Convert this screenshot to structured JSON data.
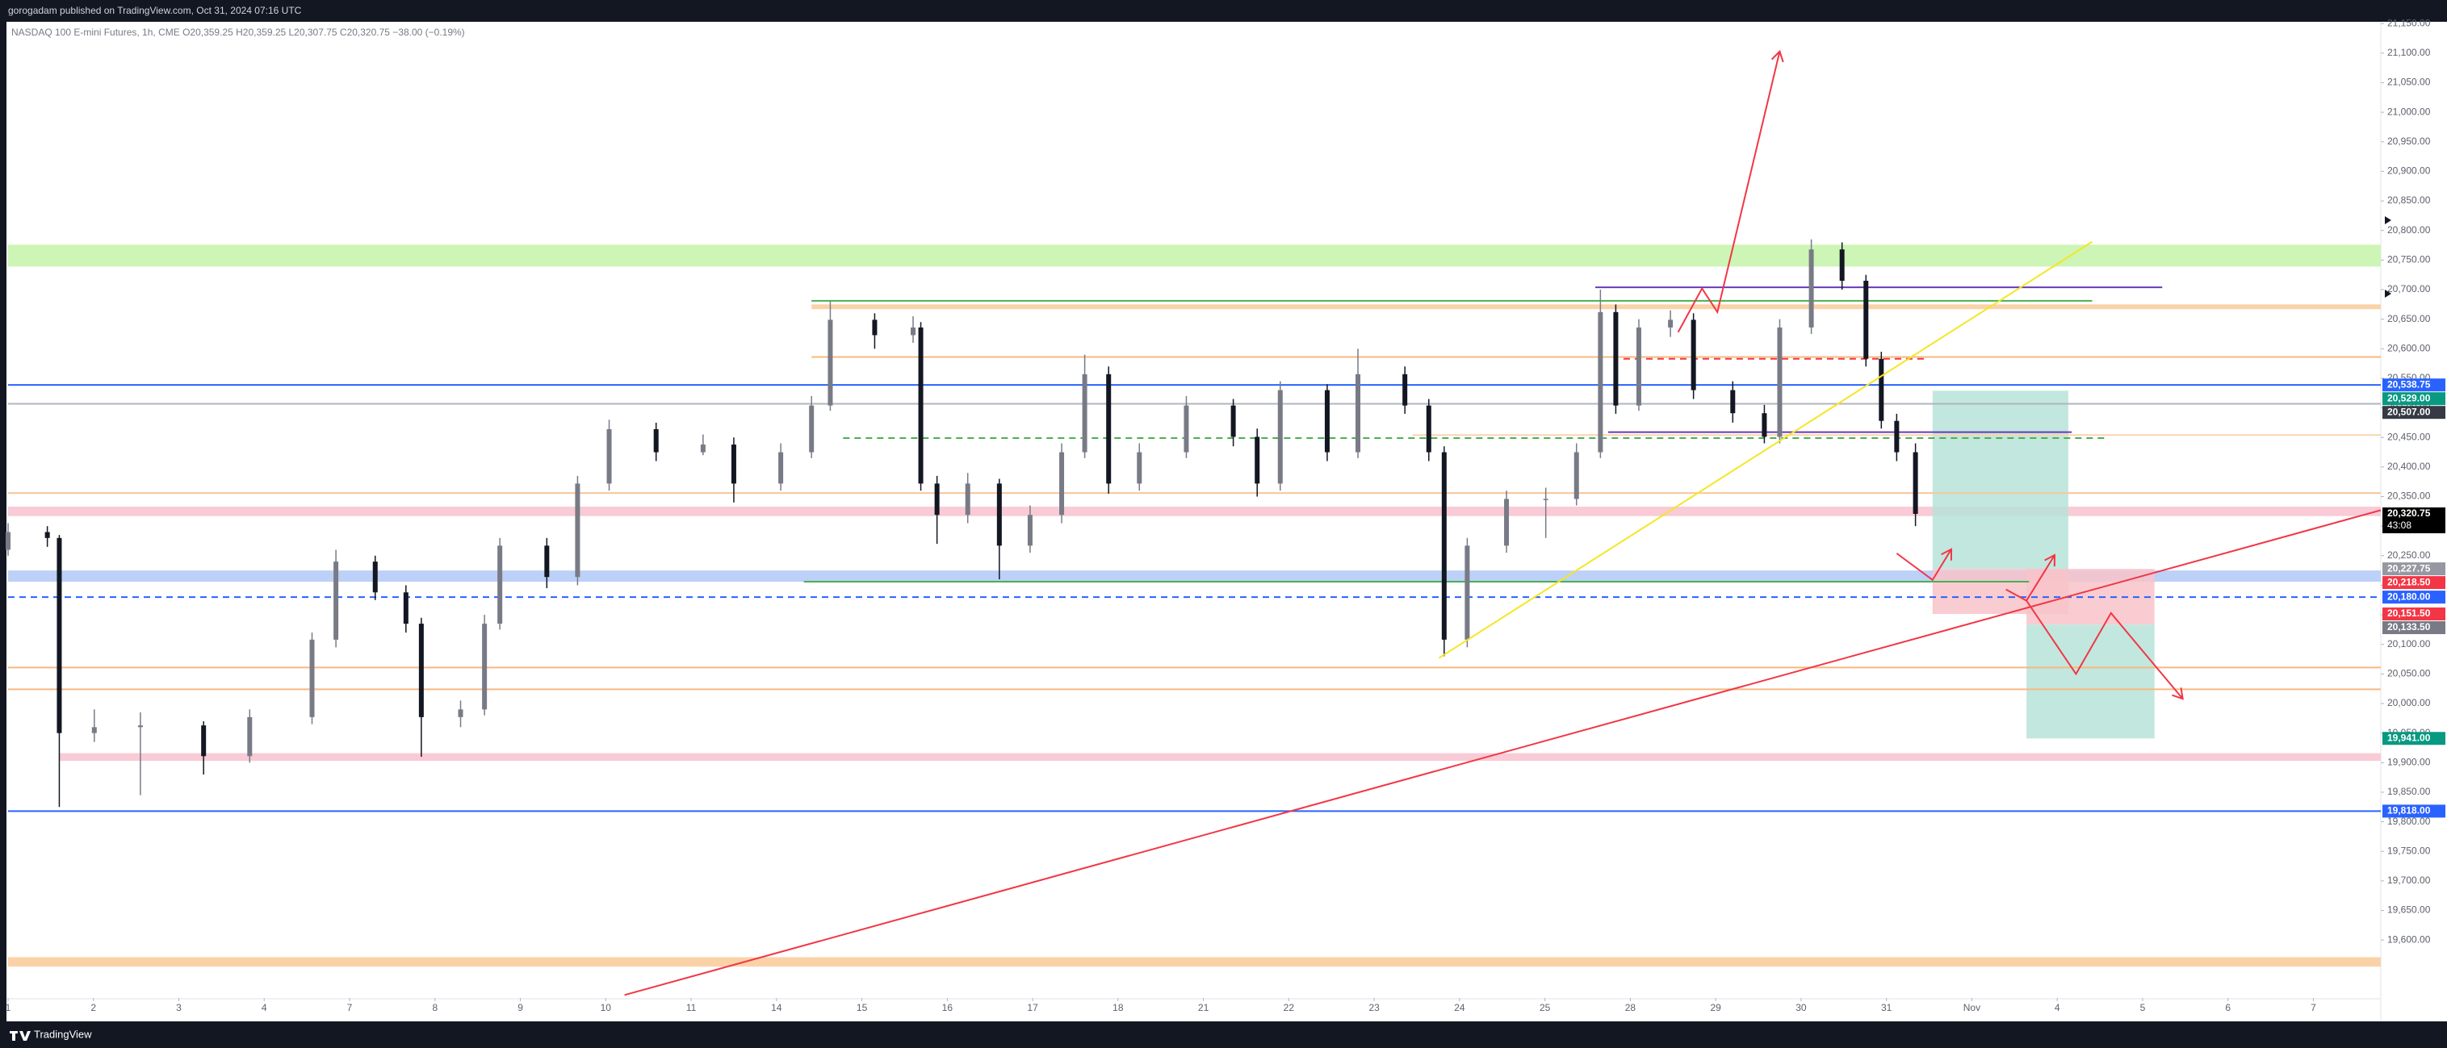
{
  "chart_data": {
    "type": "candlestick",
    "title": "gorogadam published on TradingView.com, Oct 31, 2024 07:16 UTC",
    "subtitle": "NASDAQ 100 E-mini Futures, 1h, CME  O20,359.25 H20,359.25 L20,307.75 C20,320.75 −38.00 (−0.19%)",
    "footer": "TradingView",
    "countdown": "43:08",
    "xlim": [
      0,
      27.79
    ],
    "ylim": [
      19502,
      21153
    ],
    "xticks": [
      {
        "value": 0,
        "label": "1"
      },
      {
        "value": 1,
        "label": "2"
      },
      {
        "value": 2,
        "label": "3"
      },
      {
        "value": 3,
        "label": "4"
      },
      {
        "value": 4,
        "label": "7"
      },
      {
        "value": 5,
        "label": "8"
      },
      {
        "value": 6,
        "label": "9"
      },
      {
        "value": 7,
        "label": "10"
      },
      {
        "value": 8,
        "label": "11"
      },
      {
        "value": 9,
        "label": "14"
      },
      {
        "value": 10,
        "label": "15"
      },
      {
        "value": 11,
        "label": "16"
      },
      {
        "value": 12,
        "label": "17"
      },
      {
        "value": 13,
        "label": "18"
      },
      {
        "value": 14,
        "label": "21"
      },
      {
        "value": 15,
        "label": "22"
      },
      {
        "value": 16,
        "label": "23"
      },
      {
        "value": 17,
        "label": "24"
      },
      {
        "value": 18,
        "label": "25"
      },
      {
        "value": 19,
        "label": "28"
      },
      {
        "value": 20,
        "label": "29"
      },
      {
        "value": 21,
        "label": "30"
      },
      {
        "value": 22,
        "label": "31"
      },
      {
        "value": 23,
        "label": "Nov"
      },
      {
        "value": 24,
        "label": "4"
      },
      {
        "value": 25,
        "label": "5"
      },
      {
        "value": 26,
        "label": "6"
      },
      {
        "value": 27,
        "label": "7"
      }
    ],
    "yticks": [
      {
        "value": 19600,
        "label": "19,600.00"
      },
      {
        "value": 19650,
        "label": "19,650.00"
      },
      {
        "value": 19700,
        "label": "19,700.00"
      },
      {
        "value": 19750,
        "label": "19,750.00"
      },
      {
        "value": 19800,
        "label": "19,800.00"
      },
      {
        "value": 19850,
        "label": "19,850.00"
      },
      {
        "value": 19900,
        "label": "19,900.00"
      },
      {
        "value": 19950,
        "label": "19,950.00"
      },
      {
        "value": 20000,
        "label": "20,000.00"
      },
      {
        "value": 20050,
        "label": "20,050.00"
      },
      {
        "value": 20100,
        "label": "20,100.00"
      },
      {
        "value": 20150,
        "label": "20,150.00"
      },
      {
        "value": 20200,
        "label": "20,200.00"
      },
      {
        "value": 20250,
        "label": "20,250.00"
      },
      {
        "value": 20300,
        "label": "20,300.00"
      },
      {
        "value": 20350,
        "label": "20,350.00"
      },
      {
        "value": 20400,
        "label": "20,400.00"
      },
      {
        "value": 20450,
        "label": "20,450.00"
      },
      {
        "value": 20500,
        "label": "20,500.00"
      },
      {
        "value": 20550,
        "label": "20,550.00"
      },
      {
        "value": 20600,
        "label": "20,600.00"
      },
      {
        "value": 20650,
        "label": "20,650.00"
      },
      {
        "value": 20700,
        "label": "20,700.00"
      },
      {
        "value": 20750,
        "label": "20,750.00"
      },
      {
        "value": 20800,
        "label": "20,800.00"
      },
      {
        "value": 20850,
        "label": "20,850.00"
      },
      {
        "value": 20900,
        "label": "20,900.00"
      },
      {
        "value": 20950,
        "label": "20,950.00"
      },
      {
        "value": 21000,
        "label": "21,000.00"
      },
      {
        "value": 21050,
        "label": "21,050.00"
      },
      {
        "value": 21100,
        "label": "21,100.00"
      },
      {
        "value": 21150,
        "label": "21,150.00"
      }
    ],
    "up_color": "#787b86",
    "down_color": "#131722",
    "candles": {
      "x": [
        0,
        0.46,
        0.6,
        1.01,
        1.55,
        2.29,
        2.83,
        3.56,
        3.84,
        4.3,
        4.66,
        4.84,
        5.3,
        5.58,
        5.76,
        6.31,
        6.67,
        7.04,
        7.59,
        8.14,
        8.5,
        9.05,
        9.41,
        9.63,
        10.15,
        10.6,
        10.69,
        10.88,
        11.24,
        11.61,
        11.97,
        12.34,
        12.61,
        12.89,
        13.25,
        13.8,
        14.35,
        14.63,
        14.9,
        15.45,
        15.81,
        16.36,
        16.64,
        16.82,
        17.09,
        17.55,
        18.01,
        18.37,
        18.65,
        18.83,
        19.1,
        19.47,
        19.74,
        20.2,
        20.57,
        20.75,
        21.12,
        21.48,
        21.76,
        21.94,
        22.12,
        22.34
      ],
      "open": [
        20260,
        20290,
        20280,
        19950,
        19960,
        19963,
        19911,
        19977,
        20108,
        20240,
        20188,
        20135,
        19977,
        19990,
        20135,
        20267,
        20214,
        20372,
        20464,
        20425,
        20438,
        20372,
        20425,
        20504,
        20649,
        20623,
        20636,
        20372,
        20319,
        20372,
        20267,
        20319,
        20425,
        20557,
        20372,
        20425,
        20504,
        20451,
        20372,
        20530,
        20425,
        20557,
        20504,
        20425,
        20108,
        20267,
        20346,
        20346,
        20425,
        20662,
        20504,
        20636,
        20649,
        20530,
        20491,
        20451,
        20636,
        20768,
        20715,
        20583,
        20478,
        20425
      ],
      "high": [
        20305,
        20300,
        20285,
        19990,
        19985,
        19970,
        19990,
        20120,
        20260,
        20250,
        20200,
        20145,
        20005,
        20150,
        20280,
        20280,
        20385,
        20480,
        20475,
        20455,
        20450,
        20440,
        20520,
        20680,
        20660,
        20655,
        20645,
        20385,
        20390,
        20380,
        20335,
        20440,
        20590,
        20570,
        20440,
        20520,
        20515,
        20465,
        20545,
        20540,
        20600,
        20570,
        20515,
        20435,
        20280,
        20360,
        20365,
        20440,
        20700,
        20675,
        20650,
        20665,
        20660,
        20545,
        20505,
        20650,
        20785,
        20780,
        20725,
        20595,
        20490,
        20440
      ],
      "low": [
        20250,
        20265,
        19825,
        19935,
        19845,
        19880,
        19900,
        19965,
        20095,
        20175,
        20120,
        19910,
        19960,
        19980,
        20125,
        20195,
        20200,
        20360,
        20410,
        20420,
        20340,
        20360,
        20415,
        20495,
        20600,
        20610,
        20360,
        20270,
        20305,
        20210,
        20255,
        20305,
        20415,
        20355,
        20360,
        20415,
        20435,
        20350,
        20360,
        20410,
        20415,
        20490,
        20410,
        20080,
        20095,
        20255,
        20280,
        20335,
        20415,
        20490,
        20495,
        20620,
        20515,
        20475,
        20440,
        20440,
        20625,
        20700,
        20570,
        20465,
        20410,
        20300
      ],
      "close": [
        20290,
        20280,
        19950,
        19960,
        19963,
        19911,
        19977,
        20108,
        20240,
        20188,
        20135,
        19977,
        19990,
        20135,
        20267,
        20214,
        20372,
        20464,
        20425,
        20438,
        20372,
        20425,
        20504,
        20649,
        20623,
        20636,
        20372,
        20319,
        20372,
        20267,
        20319,
        20425,
        20557,
        20372,
        20425,
        20504,
        20451,
        20372,
        20530,
        20425,
        20557,
        20504,
        20425,
        20108,
        20267,
        20346,
        20346,
        20425,
        20662,
        20504,
        20636,
        20649,
        20530,
        20491,
        20451,
        20636,
        20768,
        20715,
        20583,
        20478,
        20425,
        20320.75
      ]
    },
    "zones": [
      {
        "from": 20739,
        "to": 20776,
        "color": "#cdf5b5"
      },
      {
        "from": 20667,
        "to": 20675,
        "color": "#fbd2a8",
        "x1": 9.41
      },
      {
        "from": 20317,
        "to": 20333,
        "color": "#f9cbd6"
      },
      {
        "from": 20206,
        "to": 20225,
        "color": "#bcd0f8"
      },
      {
        "from": 19903,
        "to": 19916,
        "color": "#f9cbd6",
        "x1": 0.6
      },
      {
        "from": 19555,
        "to": 19571,
        "color": "#fbd2a8"
      }
    ],
    "levels": [
      {
        "value": 20681,
        "color": "#4caf50",
        "x1": 9.41,
        "x2": 24.41
      },
      {
        "value": 20586,
        "color": "#f7b980",
        "x1": 9.41
      },
      {
        "value": 20538.75,
        "color": "#2962ff"
      },
      {
        "value": 20507,
        "color": "#b2b5be"
      },
      {
        "value": 20454,
        "color": "#f9d3b0",
        "x1": 16.45
      },
      {
        "value": 20449,
        "color": "#4caf50",
        "x1": 9.78,
        "x2": 24.59,
        "dash": true
      },
      {
        "value": 20356,
        "color": "#f7c79a"
      },
      {
        "value": 20206,
        "color": "#4caf50",
        "x1": 9.32,
        "x2": 23.67
      },
      {
        "value": 20180,
        "color": "#2962ff",
        "dash": true
      },
      {
        "value": 20061,
        "color": "#f7b980"
      },
      {
        "value": 20024,
        "color": "#f7b980"
      },
      {
        "value": 19818,
        "color": "#2962ff"
      },
      {
        "value": 20704,
        "color": "#673ab7",
        "x1": 18.59,
        "x2": 25.23
      },
      {
        "value": 20459,
        "color": "#673ab7",
        "x1": 18.74,
        "x2": 24.17
      },
      {
        "value": 20583,
        "color": "#f23645",
        "x1": 18.92,
        "x2": 22.49,
        "dash": true
      }
    ],
    "trendlines": [
      {
        "color": "#f23645",
        "points": [
          [
            7.22,
            19507
          ],
          [
            27.79,
            20327
          ]
        ]
      },
      {
        "color": "#f23645",
        "arrow": true,
        "points": [
          [
            19.56,
            20628
          ],
          [
            19.84,
            20702
          ],
          [
            20.02,
            20662
          ],
          [
            20.75,
            21103
          ]
        ]
      },
      {
        "color": "#f5e626",
        "points": [
          [
            16.76,
            20077
          ],
          [
            24.41,
            20781
          ]
        ]
      },
      {
        "color": "#f23645",
        "arrow": true,
        "points": [
          [
            22.12,
            20254
          ],
          [
            22.54,
            20209
          ],
          [
            22.76,
            20261
          ]
        ]
      },
      {
        "color": "#f23645",
        "arrow": true,
        "points": [
          [
            23.4,
            20193
          ],
          [
            23.64,
            20174
          ],
          [
            23.97,
            20251
          ]
        ]
      },
      {
        "color": "#f23645",
        "arrow": true,
        "points": [
          [
            23.64,
            20174
          ],
          [
            24.22,
            20050
          ],
          [
            24.63,
            20153
          ],
          [
            25.47,
            20008
          ]
        ]
      }
    ],
    "boxes": [
      {
        "x1": 22.54,
        "x2": 24.13,
        "from": 20227.75,
        "to": 20529,
        "color": "#b7e3d8"
      },
      {
        "x1": 22.54,
        "x2": 24.13,
        "from": 20151.5,
        "to": 20227.75,
        "color": "#f7c3c9"
      },
      {
        "x1": 23.64,
        "x2": 25.14,
        "from": 20133.5,
        "to": 20227.75,
        "color": "#f7c3c9"
      },
      {
        "x1": 23.64,
        "x2": 25.14,
        "from": 19941,
        "to": 20133.5,
        "color": "#b7e3d8"
      }
    ],
    "price_tags": [
      {
        "value": 20538.75,
        "label": "20,538.75",
        "color": "#2962ff"
      },
      {
        "value": 20529,
        "label": "20,529.00",
        "color": "#089981"
      },
      {
        "value": 20507,
        "label": "20,507.00",
        "color": "#363a45"
      },
      {
        "value": 20320.75,
        "label": "20,320.75",
        "color": "#000000"
      },
      {
        "value": 20227.75,
        "label": "20,227.75",
        "color": "#9598a1"
      },
      {
        "value": 20218.5,
        "label": "20,218.50",
        "color": "#f23645"
      },
      {
        "value": 20180,
        "label": "20,180.00",
        "color": "#2962ff"
      },
      {
        "value": 20151.5,
        "label": "20,151.50",
        "color": "#f23645"
      },
      {
        "value": 20133.5,
        "label": "20,133.50",
        "color": "#787b86"
      },
      {
        "value": 19941,
        "label": "19,941.00",
        "color": "#089981"
      },
      {
        "value": 19818,
        "label": "19,818.00",
        "color": "#2962ff"
      }
    ]
  }
}
